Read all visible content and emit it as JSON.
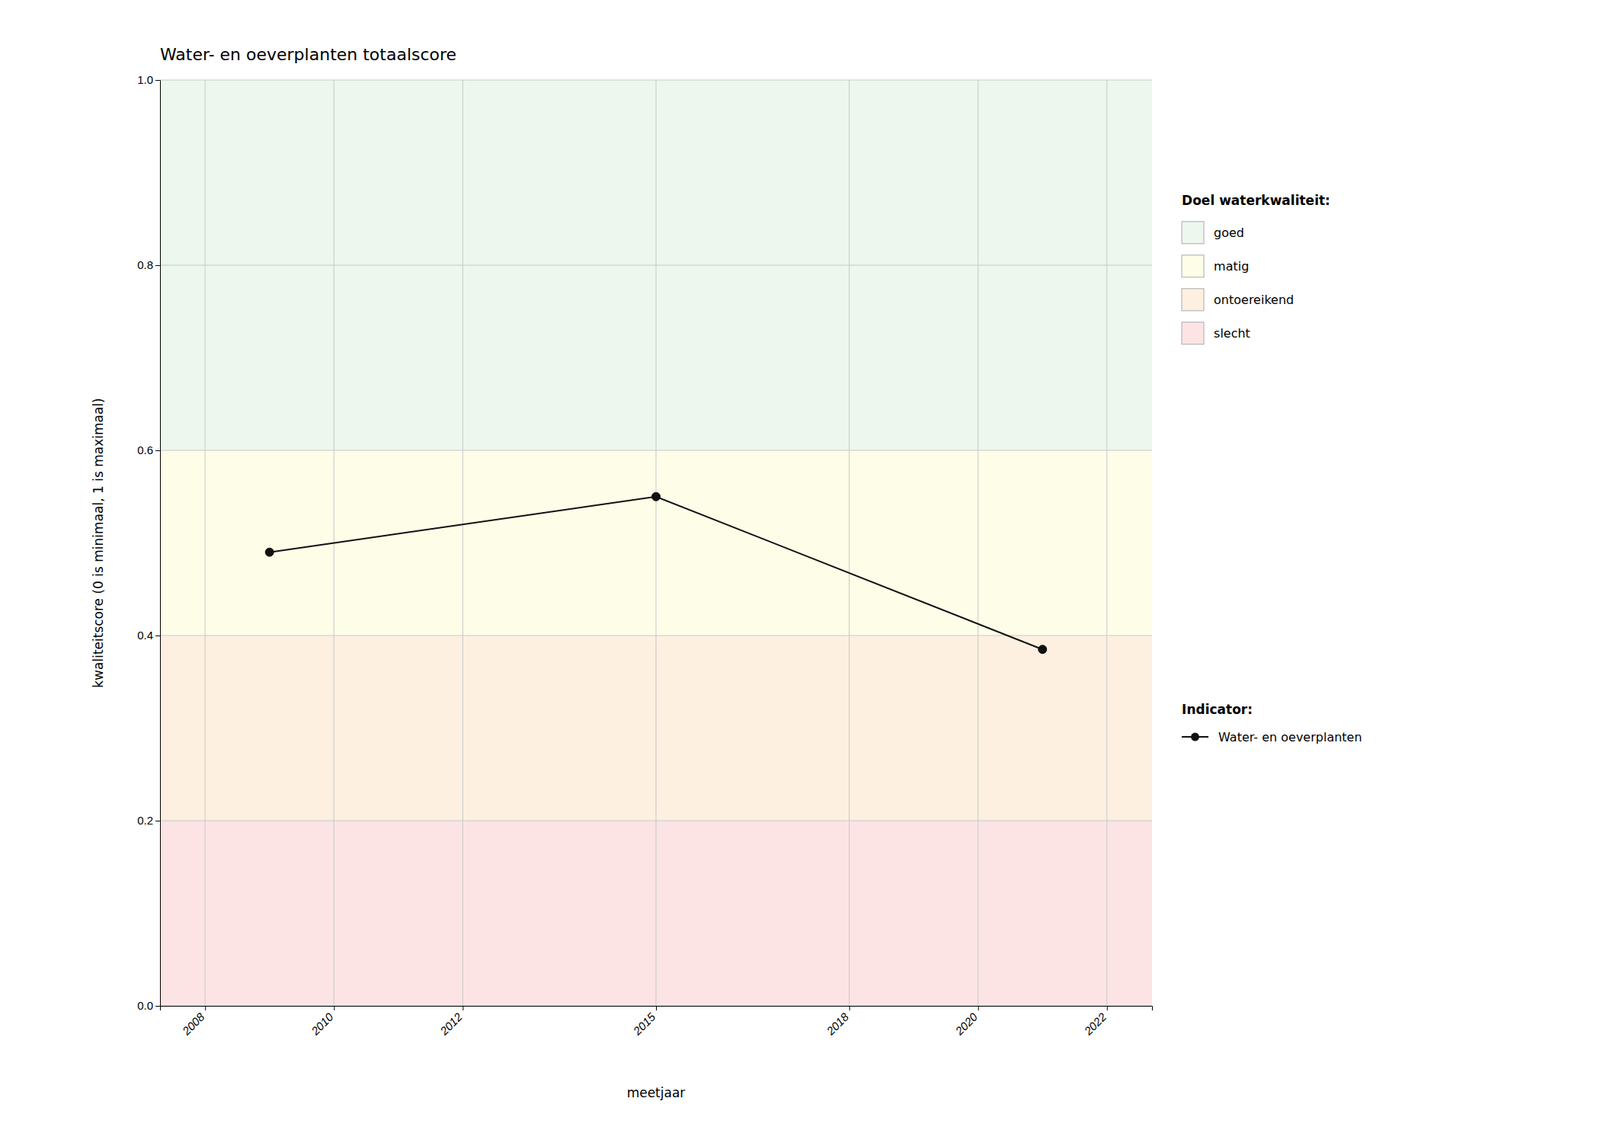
{
  "chart_data": {
    "type": "line",
    "title": "Water- en oeverplanten totaalscore",
    "x_label": "meetjaar",
    "y_label": "kwaliteitscore (0 is minimaal, 1 is maximaal)",
    "x": [
      2009,
      2015,
      2021
    ],
    "series": [
      {
        "name": "Water- en oeverplanten",
        "color": "#111111",
        "marker": "circle",
        "line_style": "solid",
        "values": [
          0.49,
          0.55,
          0.385
        ]
      }
    ],
    "xlim": [
      2007.3,
      2022.7
    ],
    "ylim": [
      0.0,
      1.0
    ],
    "xticks": [
      2008,
      2010,
      2012,
      2015,
      2018,
      2020,
      2022
    ],
    "yticks": [
      {
        "value": 0.0,
        "label": "0.0"
      },
      0.2,
      0.4,
      0.6,
      0.8,
      {
        "value": 1.0,
        "label": "1.0"
      }
    ],
    "grid": true,
    "legend": "right",
    "zones_title": "Doel waterkwaliteit:",
    "legend_title": "Indicator:",
    "zones": [
      {
        "label": "slecht",
        "ymin": 0.0,
        "ymax": 0.2,
        "color": "#fce4e4"
      },
      {
        "label": "ontoereikend",
        "ymin": 0.2,
        "ymax": 0.4,
        "color": "#fdf0e0"
      },
      {
        "label": "matig",
        "ymin": 0.4,
        "ymax": 0.6,
        "color": "#fdfde8"
      },
      {
        "label": "goed",
        "ymin": 0.6,
        "ymax": 1.0,
        "color": "#edf7ed"
      }
    ]
  }
}
